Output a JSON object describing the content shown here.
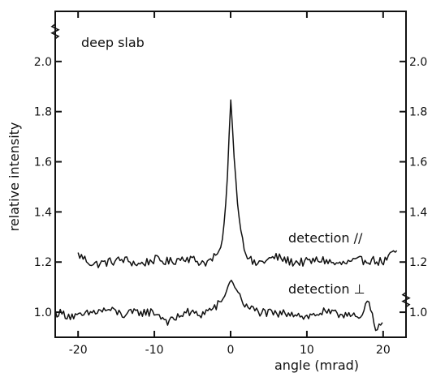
{
  "chart_data": {
    "type": "line",
    "xlabel": "angle (mrad)",
    "ylabel": "relative intensity",
    "xlim": [
      -23,
      23
    ],
    "x_ticks": [
      -20,
      -10,
      0,
      10,
      20
    ],
    "ylim_left": [
      0.9,
      2.2
    ],
    "y_ticks_left": [
      1.0,
      1.2,
      1.4,
      1.6,
      1.8,
      2.0
    ],
    "ylim_right": [
      0.9,
      2.2
    ],
    "y_ticks_right": [
      1.0,
      1.2,
      1.4,
      1.6,
      1.8,
      2.0
    ],
    "right_tick_labels": [
      "1.0",
      "1.2",
      "1.4",
      "1.6",
      "1.8",
      "2.0"
    ],
    "right_axis_break_at": 1.05,
    "left_axis_break_at": 2.12,
    "annotations": {
      "panel_label": "deep slab",
      "parallel_label": "detection //",
      "perpendicular_label": "detection ⊥"
    },
    "series": [
      {
        "name": "detection //",
        "x": [
          -20,
          -18,
          -16,
          -14,
          -12,
          -10,
          -8,
          -6,
          -4,
          -3,
          -2,
          -1.5,
          -1,
          -0.5,
          0,
          0.5,
          1,
          1.5,
          2,
          3,
          4,
          6,
          8,
          10,
          12,
          14,
          16,
          18,
          20,
          22
        ],
        "values": [
          1.23,
          1.19,
          1.2,
          1.21,
          1.19,
          1.21,
          1.2,
          1.22,
          1.2,
          1.2,
          1.22,
          1.24,
          1.3,
          1.48,
          1.86,
          1.6,
          1.4,
          1.3,
          1.24,
          1.19,
          1.2,
          1.22,
          1.2,
          1.2,
          1.21,
          1.19,
          1.2,
          1.21,
          1.2,
          1.25
        ]
      },
      {
        "name": "detection ⊥",
        "x": [
          -23,
          -20,
          -18,
          -16,
          -14,
          -12,
          -10,
          -8,
          -6,
          -4,
          -2,
          -1,
          0,
          1,
          2,
          4,
          6,
          8,
          10,
          12,
          14,
          16,
          17,
          18,
          19,
          20
        ],
        "values": [
          1.0,
          0.98,
          1.0,
          1.01,
          0.99,
          1.0,
          1.0,
          0.96,
          1.0,
          0.99,
          1.02,
          1.05,
          1.13,
          1.08,
          1.02,
          1.0,
          0.99,
          1.0,
          0.98,
          1.0,
          0.99,
          1.0,
          0.96,
          1.05,
          0.93,
          0.98
        ]
      }
    ]
  }
}
